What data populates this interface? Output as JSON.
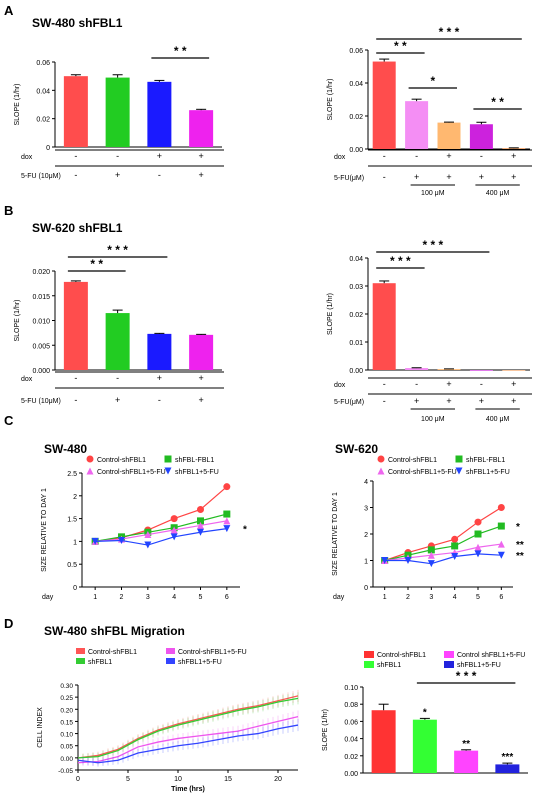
{
  "panels": {
    "A": {
      "letter": "A",
      "title": "SW-480 shFBL1"
    },
    "B": {
      "letter": "B",
      "title": "SW-620 shFBL1"
    },
    "C": {
      "letter": "C",
      "left_title": "SW-480",
      "right_title": "SW-620"
    },
    "D": {
      "letter": "D",
      "title": "SW-480 shFBL Migration"
    }
  },
  "labels": {
    "dox": "dox",
    "fu_left": "5-FU (10μM)",
    "fu_right": "5-FU(μM)",
    "dose_100": "100 μM",
    "dose_400": "400 μM",
    "day": "day"
  },
  "chart_data": [
    {
      "id": "A_left",
      "type": "bar",
      "ylabel": "SLOPE (1/hr)",
      "ylim": [
        0,
        0.06
      ],
      "yticks": [
        "0",
        "0.02",
        "0.04",
        "0.06"
      ],
      "values": [
        0.05,
        0.049,
        0.046,
        0.026
      ],
      "errors": [
        0.001,
        0.002,
        0.001,
        0.0006
      ],
      "colors": [
        "#ff4d4d",
        "#22cc22",
        "#1a1aff",
        "#ee22ee"
      ],
      "dox": [
        "-",
        "-",
        "+",
        "+"
      ],
      "fu": [
        "-",
        "+",
        "-",
        "+"
      ],
      "sig": [
        {
          "from": 2,
          "to": 3,
          "text": "* *"
        }
      ]
    },
    {
      "id": "A_right",
      "type": "bar",
      "ylabel": "SLOPE (1/hr)",
      "ylim": [
        0,
        0.06
      ],
      "yticks": [
        "0.00",
        "0.02",
        "0.04",
        "0.06"
      ],
      "values": [
        0.053,
        0.029,
        0.016,
        0.015,
        0.0005
      ],
      "errors": [
        0.0015,
        0.0012,
        0.0003,
        0.0012,
        0.0002
      ],
      "colors": [
        "#ff4d4d",
        "#f48ef4",
        "#ffb870",
        "#cc22dd",
        "#f4a060"
      ],
      "dox": [
        "-",
        "-",
        "+",
        "-",
        "+"
      ],
      "fu": [
        "-",
        "+",
        "+",
        "+",
        "+"
      ],
      "sig": [
        {
          "from": 0,
          "to": 1,
          "text": "* *"
        },
        {
          "from": 0,
          "to": 4,
          "text": "* * *"
        },
        {
          "from": 1,
          "to": 2,
          "text": "*"
        },
        {
          "from": 3,
          "to": 4,
          "text": "* *"
        }
      ]
    },
    {
      "id": "B_left",
      "type": "bar",
      "ylabel": "SLOPE (1/hr)",
      "ylim": [
        0,
        0.02
      ],
      "yticks": [
        "0.000",
        "0.005",
        "0.010",
        "0.015",
        "0.020"
      ],
      "values": [
        0.0178,
        0.0115,
        0.0073,
        0.0071
      ],
      "errors": [
        0.0002,
        0.0006,
        0.0001,
        0.0001
      ],
      "colors": [
        "#ff4d4d",
        "#22cc22",
        "#1a1aff",
        "#ee22ee"
      ],
      "dox": [
        "-",
        "-",
        "+",
        "+"
      ],
      "fu": [
        "-",
        "+",
        "-",
        "+"
      ],
      "sig": [
        {
          "from": 0,
          "to": 1,
          "text": "* *"
        },
        {
          "from": 0,
          "to": 2,
          "text": "* * *"
        }
      ]
    },
    {
      "id": "B_right",
      "type": "bar",
      "ylabel": "SLOPE (1/hr)",
      "ylim": [
        0,
        0.04
      ],
      "yticks": [
        "0.00",
        "0.01",
        "0.02",
        "0.03",
        "0.04"
      ],
      "values": [
        0.031,
        0.0007,
        0.0003,
        0.0,
        0.0
      ],
      "errors": [
        0.0008,
        0.0001,
        0.0001,
        0.0,
        0.0
      ],
      "colors": [
        "#ff4d4d",
        "#f48ef4",
        "#ffb870",
        "#cc22dd",
        "#f4a060"
      ],
      "dox": [
        "-",
        "-",
        "+",
        "-",
        "+"
      ],
      "fu": [
        "-",
        "+",
        "+",
        "+",
        "+"
      ],
      "sig": [
        {
          "from": 0,
          "to": 1,
          "text": "* * *"
        },
        {
          "from": 0,
          "to": 3,
          "text": "* * *"
        }
      ]
    },
    {
      "id": "C_left",
      "type": "line",
      "ylabel": "SIZE RELATIVE TO DAY 1",
      "x": [
        1,
        2,
        3,
        4,
        5,
        6
      ],
      "ylim": [
        0,
        2.5
      ],
      "yticks": [
        "0",
        "0.5",
        "1",
        "1.5",
        "2",
        "2.5"
      ],
      "series": [
        {
          "name": "Control-shFBL1",
          "color": "#ff4444",
          "marker": "circle",
          "values": [
            1.0,
            1.08,
            1.25,
            1.5,
            1.7,
            2.2
          ]
        },
        {
          "name": "shFBL-FBL1",
          "color": "#22bb22",
          "marker": "square",
          "values": [
            1.0,
            1.1,
            1.2,
            1.3,
            1.45,
            1.6
          ]
        },
        {
          "name": "Control-shFBL1+5-FU",
          "color": "#ee66ee",
          "marker": "triangle-up",
          "values": [
            1.0,
            1.05,
            1.15,
            1.25,
            1.35,
            1.45
          ]
        },
        {
          "name": "shFBL1+5-FU",
          "color": "#2244ff",
          "marker": "triangle-down",
          "values": [
            1.0,
            1.02,
            0.92,
            1.1,
            1.2,
            1.28
          ]
        }
      ],
      "annotations": [
        "*"
      ]
    },
    {
      "id": "C_right",
      "type": "line",
      "ylabel": "SIZE RELATIVE TO DAY 1",
      "x": [
        1,
        2,
        3,
        4,
        5,
        6
      ],
      "ylim": [
        0,
        4
      ],
      "yticks": [
        "0",
        "1",
        "2",
        "3",
        "4"
      ],
      "series": [
        {
          "name": "Control-shFBL1",
          "color": "#ff4444",
          "marker": "circle",
          "values": [
            1.0,
            1.3,
            1.55,
            1.8,
            2.45,
            3.0
          ]
        },
        {
          "name": "shFBL-FBL1",
          "color": "#22bb22",
          "marker": "square",
          "values": [
            1.0,
            1.2,
            1.4,
            1.55,
            2.0,
            2.3
          ]
        },
        {
          "name": "Control-shFBL1+5-FU",
          "color": "#ee66ee",
          "marker": "triangle-up",
          "values": [
            1.0,
            1.1,
            1.2,
            1.3,
            1.5,
            1.62
          ]
        },
        {
          "name": "shFBL1+5-FU",
          "color": "#2244ff",
          "marker": "triangle-down",
          "values": [
            1.0,
            1.0,
            0.88,
            1.15,
            1.25,
            1.2
          ]
        }
      ],
      "annotations": [
        "*",
        "**",
        "**"
      ]
    },
    {
      "id": "D_left",
      "type": "line",
      "xlabel": "Time (hrs)",
      "ylabel": "CELL INDEX",
      "xlim": [
        0,
        22
      ],
      "ylim": [
        -0.05,
        0.3
      ],
      "xticks": [
        "0",
        "5",
        "10",
        "15",
        "20"
      ],
      "yticks": [
        "-0.05",
        "0.00",
        "0.05",
        "0.10",
        "0.15",
        "0.20",
        "0.25",
        "0.30"
      ],
      "series": [
        {
          "name": "Control-shFBL1",
          "color": "#ff5555",
          "x": [
            0,
            2,
            4,
            6,
            8,
            10,
            12,
            14,
            16,
            18,
            20,
            22
          ],
          "values": [
            0.0,
            0.01,
            0.035,
            0.08,
            0.115,
            0.14,
            0.16,
            0.18,
            0.2,
            0.215,
            0.235,
            0.255
          ]
        },
        {
          "name": "shFBL1",
          "color": "#33cc33",
          "x": [
            0,
            2,
            4,
            6,
            8,
            10,
            12,
            14,
            16,
            18,
            20,
            22
          ],
          "values": [
            0.0,
            0.005,
            0.03,
            0.075,
            0.11,
            0.135,
            0.155,
            0.175,
            0.195,
            0.21,
            0.23,
            0.245
          ]
        },
        {
          "name": "Control-shFBL1+5-FU",
          "color": "#ee55ee",
          "x": [
            0,
            2,
            4,
            6,
            8,
            10,
            12,
            14,
            16,
            18,
            20,
            22
          ],
          "values": [
            -0.02,
            -0.015,
            0.005,
            0.045,
            0.065,
            0.08,
            0.09,
            0.1,
            0.11,
            0.13,
            0.15,
            0.17
          ]
        },
        {
          "name": "shFBL1+5-FU",
          "color": "#3344ff",
          "x": [
            0,
            2,
            4,
            6,
            8,
            10,
            12,
            14,
            16,
            18,
            20,
            22
          ],
          "values": [
            -0.01,
            -0.02,
            -0.01,
            0.02,
            0.035,
            0.05,
            0.06,
            0.075,
            0.09,
            0.1,
            0.12,
            0.135
          ]
        }
      ]
    },
    {
      "id": "D_right",
      "type": "bar",
      "ylabel": "SLOPE (1/hr)",
      "ylim": [
        0,
        0.1
      ],
      "yticks": [
        "0.00",
        "0.02",
        "0.04",
        "0.06",
        "0.08",
        "0.10"
      ],
      "values": [
        0.073,
        0.062,
        0.026,
        0.01
      ],
      "errors": [
        0.007,
        0.0015,
        0.001,
        0.0015
      ],
      "colors": [
        "#ff3333",
        "#33ff33",
        "#ff44ff",
        "#2222dd"
      ],
      "bar_labels": [
        "",
        "*",
        "**",
        "***"
      ],
      "sig": [
        {
          "from": 1,
          "to": 3,
          "text": "* * *"
        }
      ],
      "legend": [
        "Control-shFBL1",
        "shFBL1",
        "Control shFBL1+5-FU",
        "shFBL1+5-FU"
      ]
    }
  ]
}
